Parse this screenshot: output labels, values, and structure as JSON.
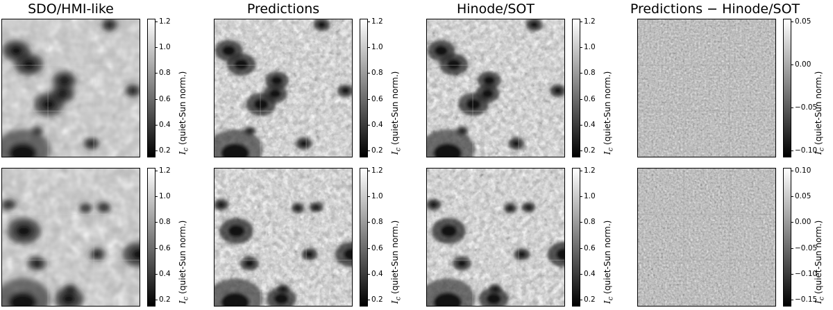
{
  "titles": [
    "SDO/HMI-like",
    "Predictions",
    "Hinode/SOT",
    "Predictions − Hinode/SOT"
  ],
  "colorbar_label": {
    "symbol": "I",
    "subscript": "c",
    "text": "(quiet-Sun norm.)"
  },
  "colorbars": {
    "row1_intensity": [
      "1.2",
      "1.0",
      "0.8",
      "0.6",
      "0.4",
      "0.2"
    ],
    "row1_diff": [
      "0.05",
      "0.00",
      "−0.05",
      "−0.10"
    ],
    "row2_intensity": [
      "1.2",
      "1.0",
      "0.8",
      "0.6",
      "0.4",
      "0.2"
    ],
    "row2_diff": [
      "0.10",
      "0.05",
      "0.00",
      "−0.05",
      "−0.10",
      "−0.15"
    ]
  },
  "colormap": "gray"
}
